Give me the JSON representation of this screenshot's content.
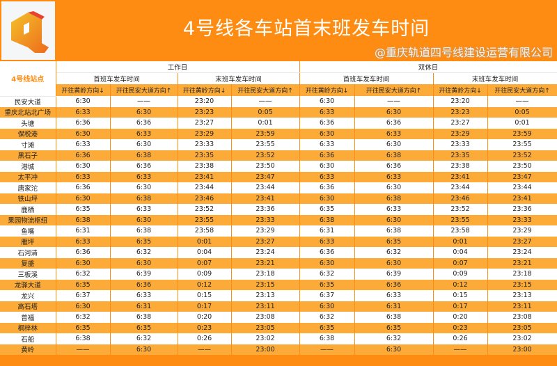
{
  "header": {
    "title": "4号线各车站首末班发车时间",
    "logo_icon": "q-logo-icon"
  },
  "table": {
    "station_header": "4号线站点",
    "groups": [
      "工作日",
      "双休日"
    ],
    "subgroups": [
      "首班车发车时间",
      "末班车发车时间"
    ],
    "directions": [
      "开往黄岭方向↓",
      "开往民安大道方向↑"
    ],
    "rows": [
      [
        "民安大道",
        "6:30",
        "——",
        "23:20",
        "——"
      ],
      [
        "重庆北站北广场",
        "6:33",
        "6:30",
        "23:23",
        "0:05"
      ],
      [
        "头塘",
        "6:36",
        "6:36",
        "23:27",
        "0:01"
      ],
      [
        "保税港",
        "6:30",
        "6:33",
        "23:29",
        "23:59"
      ],
      [
        "寸滩",
        "6:33",
        "6:30",
        "23:33",
        "23:55"
      ],
      [
        "黑石子",
        "6:36",
        "6:38",
        "23:35",
        "23:52"
      ],
      [
        "港城",
        "6:30",
        "6:36",
        "23:38",
        "23:50"
      ],
      [
        "太平冲",
        "6:33",
        "6:33",
        "23:41",
        "23:47"
      ],
      [
        "唐家沱",
        "6:36",
        "6:30",
        "23:44",
        "23:44"
      ],
      [
        "铁山坪",
        "6:30",
        "6:38",
        "23:46",
        "23:41"
      ],
      [
        "鹿栖",
        "6:35",
        "6:33",
        "23:52",
        "23:36"
      ],
      [
        "果园物流枢纽",
        "6:38",
        "6:30",
        "23:55",
        "23:33"
      ],
      [
        "鱼嘴",
        "6:31",
        "6:38",
        "23:58",
        "23:29"
      ],
      [
        "雁坪",
        "6:33",
        "6:35",
        "0:01",
        "23:27"
      ],
      [
        "石河清",
        "6:36",
        "6:32",
        "0:04",
        "23:24"
      ],
      [
        "复盛",
        "6:30",
        "6:30",
        "0:07",
        "23:21"
      ],
      [
        "三板溪",
        "6:32",
        "6:39",
        "0:09",
        "23:18"
      ],
      [
        "龙驿大道",
        "6:35",
        "6:36",
        "0:12",
        "23:15"
      ],
      [
        "龙兴",
        "6:37",
        "6:33",
        "0:15",
        "23:13"
      ],
      [
        "高石塔",
        "6:30",
        "6:31",
        "0:17",
        "23:11"
      ],
      [
        "普福",
        "6:32",
        "6:38",
        "0:20",
        "23:08"
      ],
      [
        "桐梓林",
        "6:35",
        "6:35",
        "0:23",
        "23:05"
      ],
      [
        "石船",
        "6:38",
        "6:32",
        "0:26",
        "23:02"
      ],
      [
        "黄岭",
        "——",
        "6:30",
        "——",
        "23:00"
      ]
    ]
  },
  "watermark": "@重庆轨道四号线建设运营有限公司",
  "colors": {
    "orange": "#ff8c12",
    "row_orange": "#fcab38"
  }
}
